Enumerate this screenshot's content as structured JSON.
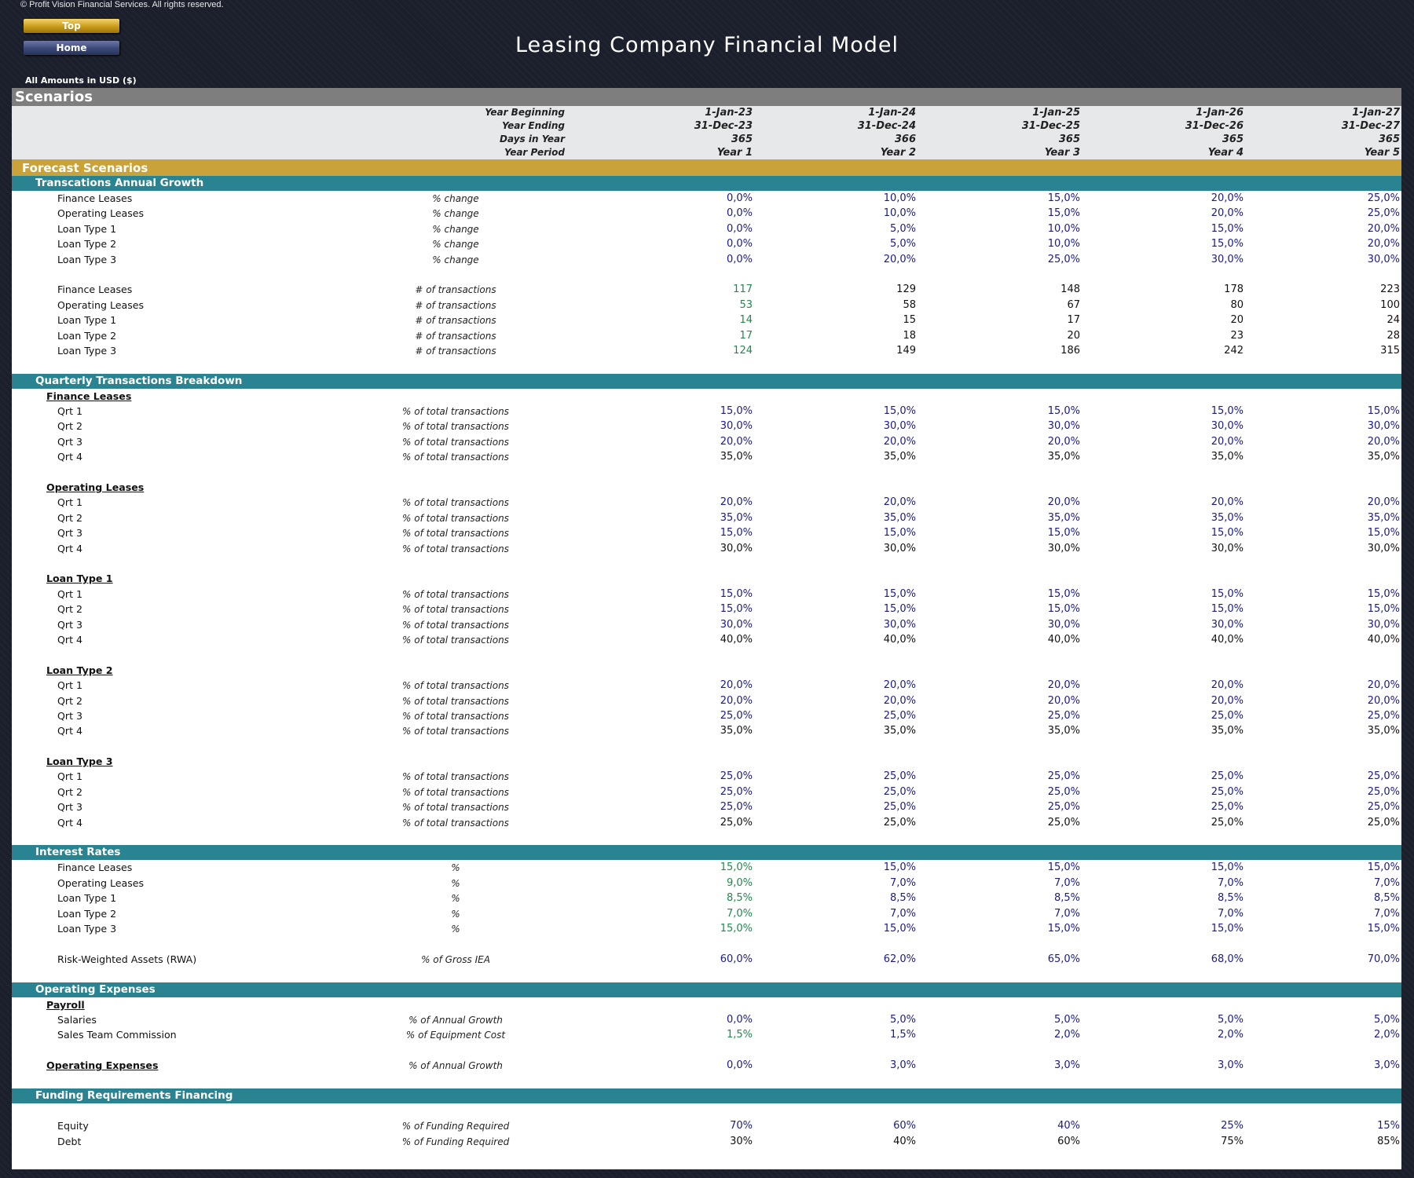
{
  "copyright": "© Profit Vision Financial Services. All rights reserved.",
  "nav": {
    "top": "Top",
    "home": "Home"
  },
  "title": "Leasing Company Financial Model",
  "amounts_label": "All Amounts in  USD ($)",
  "section_title": "Scenarios",
  "header_rows": [
    {
      "label": "Year Beginning",
      "values": [
        "1-Jan-23",
        "1-Jan-24",
        "1-Jan-25",
        "1-Jan-26",
        "1-Jan-27"
      ]
    },
    {
      "label": "Year Ending",
      "values": [
        "31-Dec-23",
        "31-Dec-24",
        "31-Dec-25",
        "31-Dec-26",
        "31-Dec-27"
      ]
    },
    {
      "label": "Days in Year",
      "values": [
        "365",
        "366",
        "365",
        "365",
        "365"
      ]
    },
    {
      "label": "Year Period",
      "values": [
        "Year 1",
        "Year 2",
        "Year 3",
        "Year 4",
        "Year 5"
      ]
    }
  ],
  "forecast_title": "Forecast Scenarios",
  "blocks": [
    {
      "type": "sub",
      "label": "Transcations Annual Growth"
    },
    {
      "type": "row",
      "name": "Finance Leases",
      "unit": "% change",
      "values": [
        "0,0%",
        "10,0%",
        "15,0%",
        "20,0%",
        "25,0%"
      ],
      "colors": [
        "blue",
        "blue",
        "blue",
        "blue",
        "blue"
      ]
    },
    {
      "type": "row",
      "name": "Operating Leases",
      "unit": "% change",
      "values": [
        "0,0%",
        "10,0%",
        "15,0%",
        "20,0%",
        "25,0%"
      ],
      "colors": [
        "blue",
        "blue",
        "blue",
        "blue",
        "blue"
      ]
    },
    {
      "type": "row",
      "name": "Loan Type 1",
      "unit": "% change",
      "values": [
        "0,0%",
        "5,0%",
        "10,0%",
        "15,0%",
        "20,0%"
      ],
      "colors": [
        "blue",
        "blue",
        "blue",
        "blue",
        "blue"
      ]
    },
    {
      "type": "row",
      "name": "Loan Type 2",
      "unit": "% change",
      "values": [
        "0,0%",
        "5,0%",
        "10,0%",
        "15,0%",
        "20,0%"
      ],
      "colors": [
        "blue",
        "blue",
        "blue",
        "blue",
        "blue"
      ]
    },
    {
      "type": "row",
      "name": "Loan Type 3",
      "unit": "% change",
      "values": [
        "0,0%",
        "20,0%",
        "25,0%",
        "30,0%",
        "30,0%"
      ],
      "colors": [
        "blue",
        "blue",
        "blue",
        "blue",
        "blue"
      ]
    },
    {
      "type": "gap"
    },
    {
      "type": "row",
      "name": "Finance Leases",
      "unit": "# of transactions",
      "values": [
        "117",
        "129",
        "148",
        "178",
        "223"
      ],
      "colors": [
        "green",
        "black",
        "black",
        "black",
        "black"
      ]
    },
    {
      "type": "row",
      "name": "Operating Leases",
      "unit": "# of transactions",
      "values": [
        "53",
        "58",
        "67",
        "80",
        "100"
      ],
      "colors": [
        "green",
        "black",
        "black",
        "black",
        "black"
      ]
    },
    {
      "type": "row",
      "name": "Loan Type 1",
      "unit": "# of transactions",
      "values": [
        "14",
        "15",
        "17",
        "20",
        "24"
      ],
      "colors": [
        "green",
        "black",
        "black",
        "black",
        "black"
      ]
    },
    {
      "type": "row",
      "name": "Loan Type 2",
      "unit": "# of transactions",
      "values": [
        "17",
        "18",
        "20",
        "23",
        "28"
      ],
      "colors": [
        "green",
        "black",
        "black",
        "black",
        "black"
      ]
    },
    {
      "type": "row",
      "name": "Loan Type 3",
      "unit": "# of transactions",
      "values": [
        "124",
        "149",
        "186",
        "242",
        "315"
      ],
      "colors": [
        "green",
        "black",
        "black",
        "black",
        "black"
      ]
    },
    {
      "type": "gap"
    },
    {
      "type": "sub",
      "label": "Quarterly Transactions Breakdown"
    },
    {
      "type": "grp",
      "label": "Finance Leases"
    },
    {
      "type": "row",
      "name": "Qrt 1",
      "unit": "% of total transactions",
      "values": [
        "15,0%",
        "15,0%",
        "15,0%",
        "15,0%",
        "15,0%"
      ],
      "colors": [
        "blue",
        "blue",
        "blue",
        "blue",
        "blue"
      ]
    },
    {
      "type": "row",
      "name": "Qrt 2",
      "unit": "% of total transactions",
      "values": [
        "30,0%",
        "30,0%",
        "30,0%",
        "30,0%",
        "30,0%"
      ],
      "colors": [
        "blue",
        "blue",
        "blue",
        "blue",
        "blue"
      ]
    },
    {
      "type": "row",
      "name": "Qrt 3",
      "unit": "% of total transactions",
      "values": [
        "20,0%",
        "20,0%",
        "20,0%",
        "20,0%",
        "20,0%"
      ],
      "colors": [
        "blue",
        "blue",
        "blue",
        "blue",
        "blue"
      ]
    },
    {
      "type": "row",
      "name": "Qrt 4",
      "unit": "% of total transactions",
      "values": [
        "35,0%",
        "35,0%",
        "35,0%",
        "35,0%",
        "35,0%"
      ],
      "colors": [
        "black",
        "black",
        "black",
        "black",
        "black"
      ]
    },
    {
      "type": "gap"
    },
    {
      "type": "grp",
      "label": "Operating Leases"
    },
    {
      "type": "row",
      "name": "Qrt 1",
      "unit": "% of total transactions",
      "values": [
        "20,0%",
        "20,0%",
        "20,0%",
        "20,0%",
        "20,0%"
      ],
      "colors": [
        "blue",
        "blue",
        "blue",
        "blue",
        "blue"
      ]
    },
    {
      "type": "row",
      "name": "Qrt 2",
      "unit": "% of total transactions",
      "values": [
        "35,0%",
        "35,0%",
        "35,0%",
        "35,0%",
        "35,0%"
      ],
      "colors": [
        "blue",
        "blue",
        "blue",
        "blue",
        "blue"
      ]
    },
    {
      "type": "row",
      "name": "Qrt 3",
      "unit": "% of total transactions",
      "values": [
        "15,0%",
        "15,0%",
        "15,0%",
        "15,0%",
        "15,0%"
      ],
      "colors": [
        "blue",
        "blue",
        "blue",
        "blue",
        "blue"
      ]
    },
    {
      "type": "row",
      "name": "Qrt 4",
      "unit": "% of total transactions",
      "values": [
        "30,0%",
        "30,0%",
        "30,0%",
        "30,0%",
        "30,0%"
      ],
      "colors": [
        "black",
        "black",
        "black",
        "black",
        "black"
      ]
    },
    {
      "type": "gap"
    },
    {
      "type": "grp",
      "label": "Loan Type 1"
    },
    {
      "type": "row",
      "name": "Qrt 1",
      "unit": "% of total transactions",
      "values": [
        "15,0%",
        "15,0%",
        "15,0%",
        "15,0%",
        "15,0%"
      ],
      "colors": [
        "blue",
        "blue",
        "blue",
        "blue",
        "blue"
      ]
    },
    {
      "type": "row",
      "name": "Qrt 2",
      "unit": "% of total transactions",
      "values": [
        "15,0%",
        "15,0%",
        "15,0%",
        "15,0%",
        "15,0%"
      ],
      "colors": [
        "blue",
        "blue",
        "blue",
        "blue",
        "blue"
      ]
    },
    {
      "type": "row",
      "name": "Qrt 3",
      "unit": "% of total transactions",
      "values": [
        "30,0%",
        "30,0%",
        "30,0%",
        "30,0%",
        "30,0%"
      ],
      "colors": [
        "blue",
        "blue",
        "blue",
        "blue",
        "blue"
      ]
    },
    {
      "type": "row",
      "name": "Qrt 4",
      "unit": "% of total transactions",
      "values": [
        "40,0%",
        "40,0%",
        "40,0%",
        "40,0%",
        "40,0%"
      ],
      "colors": [
        "black",
        "black",
        "black",
        "black",
        "black"
      ]
    },
    {
      "type": "gap"
    },
    {
      "type": "grp",
      "label": "Loan Type 2"
    },
    {
      "type": "row",
      "name": "Qrt 1",
      "unit": "% of total transactions",
      "values": [
        "20,0%",
        "20,0%",
        "20,0%",
        "20,0%",
        "20,0%"
      ],
      "colors": [
        "blue",
        "blue",
        "blue",
        "blue",
        "blue"
      ]
    },
    {
      "type": "row",
      "name": "Qrt 2",
      "unit": "% of total transactions",
      "values": [
        "20,0%",
        "20,0%",
        "20,0%",
        "20,0%",
        "20,0%"
      ],
      "colors": [
        "blue",
        "blue",
        "blue",
        "blue",
        "blue"
      ]
    },
    {
      "type": "row",
      "name": "Qrt 3",
      "unit": "% of total transactions",
      "values": [
        "25,0%",
        "25,0%",
        "25,0%",
        "25,0%",
        "25,0%"
      ],
      "colors": [
        "blue",
        "blue",
        "blue",
        "blue",
        "blue"
      ]
    },
    {
      "type": "row",
      "name": "Qrt 4",
      "unit": "% of total transactions",
      "values": [
        "35,0%",
        "35,0%",
        "35,0%",
        "35,0%",
        "35,0%"
      ],
      "colors": [
        "black",
        "black",
        "black",
        "black",
        "black"
      ]
    },
    {
      "type": "gap"
    },
    {
      "type": "grp",
      "label": "Loan Type 3"
    },
    {
      "type": "row",
      "name": "Qrt 1",
      "unit": "% of total transactions",
      "values": [
        "25,0%",
        "25,0%",
        "25,0%",
        "25,0%",
        "25,0%"
      ],
      "colors": [
        "blue",
        "blue",
        "blue",
        "blue",
        "blue"
      ]
    },
    {
      "type": "row",
      "name": "Qrt 2",
      "unit": "% of total transactions",
      "values": [
        "25,0%",
        "25,0%",
        "25,0%",
        "25,0%",
        "25,0%"
      ],
      "colors": [
        "blue",
        "blue",
        "blue",
        "blue",
        "blue"
      ]
    },
    {
      "type": "row",
      "name": "Qrt 3",
      "unit": "% of total transactions",
      "values": [
        "25,0%",
        "25,0%",
        "25,0%",
        "25,0%",
        "25,0%"
      ],
      "colors": [
        "blue",
        "blue",
        "blue",
        "blue",
        "blue"
      ]
    },
    {
      "type": "row",
      "name": "Qrt 4",
      "unit": "% of total transactions",
      "values": [
        "25,0%",
        "25,0%",
        "25,0%",
        "25,0%",
        "25,0%"
      ],
      "colors": [
        "black",
        "black",
        "black",
        "black",
        "black"
      ]
    },
    {
      "type": "gap"
    },
    {
      "type": "sub",
      "label": "Interest Rates"
    },
    {
      "type": "row",
      "name": "Finance Leases",
      "unit": "%",
      "values": [
        "15,0%",
        "15,0%",
        "15,0%",
        "15,0%",
        "15,0%"
      ],
      "colors": [
        "green",
        "blue",
        "blue",
        "blue",
        "blue"
      ]
    },
    {
      "type": "row",
      "name": "Operating Leases",
      "unit": "%",
      "values": [
        "9,0%",
        "7,0%",
        "7,0%",
        "7,0%",
        "7,0%"
      ],
      "colors": [
        "green",
        "blue",
        "blue",
        "blue",
        "blue"
      ]
    },
    {
      "type": "row",
      "name": "Loan Type 1",
      "unit": "%",
      "values": [
        "8,5%",
        "8,5%",
        "8,5%",
        "8,5%",
        "8,5%"
      ],
      "colors": [
        "green",
        "blue",
        "blue",
        "blue",
        "blue"
      ]
    },
    {
      "type": "row",
      "name": "Loan Type 2",
      "unit": "%",
      "values": [
        "7,0%",
        "7,0%",
        "7,0%",
        "7,0%",
        "7,0%"
      ],
      "colors": [
        "green",
        "blue",
        "blue",
        "blue",
        "blue"
      ]
    },
    {
      "type": "row",
      "name": "Loan Type 3",
      "unit": "%",
      "values": [
        "15,0%",
        "15,0%",
        "15,0%",
        "15,0%",
        "15,0%"
      ],
      "colors": [
        "green",
        "blue",
        "blue",
        "blue",
        "blue"
      ]
    },
    {
      "type": "gap"
    },
    {
      "type": "row",
      "name": "Risk-Weighted Assets (RWA)",
      "unit": "% of Gross IEA",
      "values": [
        "60,0%",
        "62,0%",
        "65,0%",
        "68,0%",
        "70,0%"
      ],
      "colors": [
        "blue",
        "blue",
        "blue",
        "blue",
        "blue"
      ]
    },
    {
      "type": "gap"
    },
    {
      "type": "sub",
      "label": "Operating Expenses"
    },
    {
      "type": "grp",
      "label": "Payroll"
    },
    {
      "type": "row",
      "name": "Salaries",
      "unit": "% of Annual Growth",
      "values": [
        "0,0%",
        "5,0%",
        "5,0%",
        "5,0%",
        "5,0%"
      ],
      "colors": [
        "blue",
        "blue",
        "blue",
        "blue",
        "blue"
      ]
    },
    {
      "type": "row",
      "name": "Sales Team Commission",
      "unit": "% of Equipment Cost",
      "values": [
        "1,5%",
        "1,5%",
        "2,0%",
        "2,0%",
        "2,0%"
      ],
      "colors": [
        "green",
        "blue",
        "blue",
        "blue",
        "blue"
      ]
    },
    {
      "type": "gap"
    },
    {
      "type": "grprow",
      "label": "Operating Expenses",
      "unit": "% of Annual Growth",
      "values": [
        "0,0%",
        "3,0%",
        "3,0%",
        "3,0%",
        "3,0%"
      ],
      "colors": [
        "blue",
        "blue",
        "blue",
        "blue",
        "blue"
      ]
    },
    {
      "type": "gap"
    },
    {
      "type": "sub",
      "label": "Funding Requirements Financing"
    },
    {
      "type": "gap"
    },
    {
      "type": "row",
      "name": "Equity",
      "unit": "% of Funding Required",
      "values": [
        "70%",
        "60%",
        "40%",
        "25%",
        "15%"
      ],
      "colors": [
        "blue",
        "blue",
        "blue",
        "blue",
        "blue"
      ]
    },
    {
      "type": "row",
      "name": "Debt",
      "unit": "% of Funding Required",
      "values": [
        "30%",
        "40%",
        "60%",
        "75%",
        "85%"
      ],
      "colors": [
        "black",
        "black",
        "black",
        "black",
        "black"
      ]
    }
  ]
}
